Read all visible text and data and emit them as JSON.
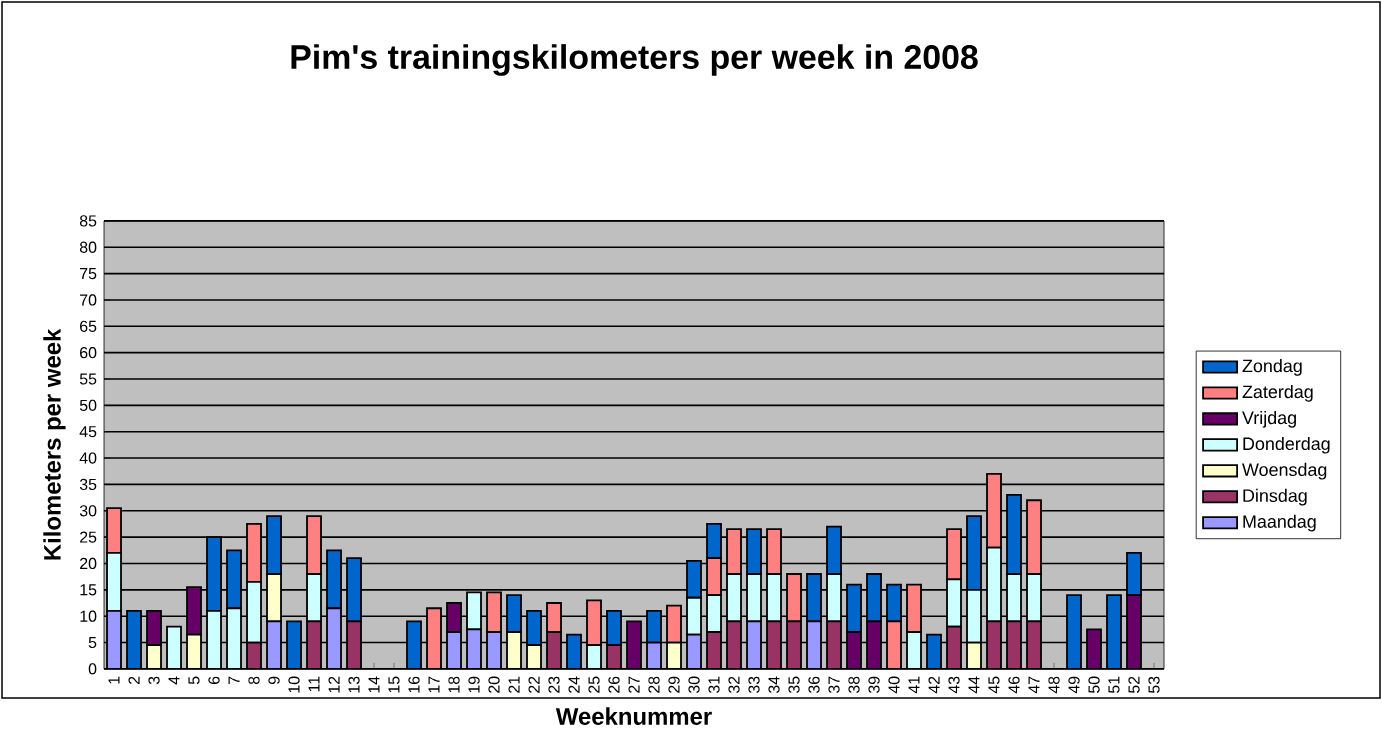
{
  "chart_data": {
    "type": "bar",
    "stacked": true,
    "title": "Pim's  trainingskilometers per week in 2008",
    "xlabel": "Weeknummer",
    "ylabel": "Kilometers per week",
    "categories": [
      "1",
      "2",
      "3",
      "4",
      "5",
      "6",
      "7",
      "8",
      "9",
      "10",
      "11",
      "12",
      "13",
      "14",
      "15",
      "16",
      "17",
      "18",
      "19",
      "20",
      "21",
      "22",
      "23",
      "24",
      "25",
      "26",
      "27",
      "28",
      "29",
      "30",
      "31",
      "32",
      "33",
      "34",
      "35",
      "36",
      "37",
      "38",
      "39",
      "40",
      "41",
      "42",
      "43",
      "44",
      "45",
      "46",
      "47",
      "48",
      "49",
      "50",
      "51",
      "52",
      "53"
    ],
    "ylim": [
      0,
      85
    ],
    "yticks": [
      0,
      5,
      10,
      15,
      20,
      25,
      30,
      35,
      40,
      45,
      50,
      55,
      60,
      65,
      70,
      75,
      80,
      85
    ],
    "grid": "y",
    "legend": "right",
    "series": [
      {
        "name": "Maandag",
        "color": "#9999ff",
        "values": [
          11,
          null,
          null,
          null,
          null,
          null,
          null,
          null,
          9,
          null,
          null,
          11.5,
          null,
          null,
          null,
          null,
          null,
          7,
          7.5,
          7,
          null,
          null,
          null,
          null,
          null,
          null,
          null,
          5,
          null,
          6.5,
          null,
          null,
          9,
          null,
          null,
          9,
          null,
          null,
          null,
          null,
          null,
          null,
          null,
          null,
          null,
          null,
          null,
          null,
          null,
          null,
          null,
          null,
          null
        ]
      },
      {
        "name": "Dinsdag",
        "color": "#993366",
        "values": [
          null,
          null,
          null,
          null,
          null,
          null,
          null,
          5,
          null,
          null,
          9,
          null,
          9,
          null,
          null,
          null,
          null,
          null,
          null,
          null,
          null,
          null,
          7,
          null,
          null,
          4.5,
          null,
          null,
          null,
          null,
          7,
          9,
          null,
          9,
          9,
          null,
          9,
          null,
          null,
          null,
          null,
          null,
          8,
          null,
          9,
          9,
          9,
          null,
          null,
          null,
          null,
          null,
          null
        ]
      },
      {
        "name": "Woensdag",
        "color": "#ffffcc",
        "values": [
          null,
          null,
          4.5,
          null,
          6.5,
          null,
          null,
          null,
          9,
          null,
          null,
          null,
          null,
          null,
          null,
          null,
          null,
          null,
          null,
          null,
          7,
          4.5,
          null,
          null,
          null,
          null,
          null,
          null,
          5,
          null,
          null,
          null,
          null,
          null,
          null,
          null,
          null,
          null,
          null,
          null,
          null,
          null,
          null,
          5,
          null,
          null,
          null,
          null,
          null,
          null,
          null,
          null,
          null
        ]
      },
      {
        "name": "Donderdag",
        "color": "#ccffff",
        "values": [
          11,
          null,
          null,
          8,
          null,
          11,
          11.5,
          11.5,
          null,
          null,
          9,
          null,
          null,
          null,
          null,
          null,
          null,
          null,
          7,
          null,
          null,
          null,
          null,
          null,
          4.5,
          null,
          null,
          null,
          null,
          7,
          7,
          9,
          9,
          9,
          null,
          null,
          9,
          null,
          null,
          null,
          7,
          null,
          9,
          10,
          14,
          9,
          9,
          null,
          null,
          null,
          null,
          null,
          null
        ]
      },
      {
        "name": "Vrijdag",
        "color": "#660066",
        "values": [
          null,
          null,
          6.5,
          null,
          9,
          null,
          null,
          null,
          null,
          null,
          null,
          null,
          null,
          null,
          null,
          null,
          null,
          5.5,
          null,
          null,
          null,
          null,
          null,
          null,
          null,
          null,
          9,
          null,
          null,
          null,
          null,
          null,
          null,
          null,
          null,
          null,
          null,
          7,
          9,
          null,
          null,
          null,
          null,
          null,
          null,
          null,
          null,
          null,
          null,
          7.5,
          null,
          14,
          null
        ]
      },
      {
        "name": "Zaterdag",
        "color": "#ff8080",
        "values": [
          8.5,
          null,
          null,
          null,
          null,
          null,
          null,
          11,
          null,
          null,
          11,
          null,
          null,
          null,
          null,
          null,
          11.5,
          null,
          null,
          7.5,
          null,
          null,
          5.5,
          null,
          8.5,
          null,
          null,
          null,
          7,
          null,
          7,
          8.5,
          null,
          8.5,
          9,
          null,
          null,
          null,
          null,
          9,
          9,
          null,
          9.5,
          null,
          14,
          null,
          14,
          null,
          null,
          null,
          null,
          null,
          null
        ]
      },
      {
        "name": "Zondag",
        "color": "#0066cc",
        "values": [
          null,
          11,
          null,
          null,
          null,
          14,
          11,
          null,
          11,
          9,
          null,
          11,
          12,
          null,
          null,
          9,
          null,
          null,
          null,
          null,
          7,
          6.5,
          null,
          6.5,
          null,
          6.5,
          null,
          6,
          null,
          7,
          6.5,
          null,
          8.5,
          null,
          null,
          9,
          9,
          9,
          9,
          7,
          null,
          6.5,
          null,
          14,
          null,
          15,
          null,
          null,
          14,
          null,
          14,
          8,
          null
        ]
      }
    ]
  }
}
